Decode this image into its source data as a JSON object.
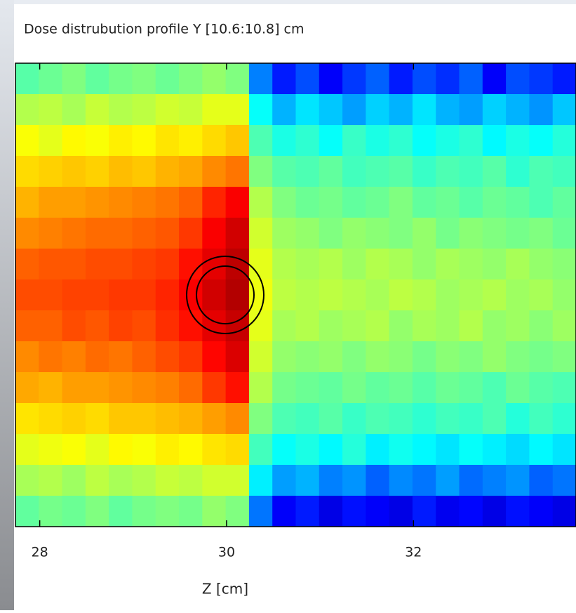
{
  "chart_data": {
    "type": "heatmap",
    "title": "Dose distrubution profile Y [10.6:10.8] cm",
    "xlabel": "Z [cm]",
    "xlim": [
      27.74,
      33.74
    ],
    "xticks": [
      28,
      30,
      32
    ],
    "colormap": "jet",
    "zlim": [
      0,
      1
    ],
    "z": [
      [
        0.46,
        0.48,
        0.5,
        0.47,
        0.49,
        0.5,
        0.48,
        0.5,
        0.52,
        0.5,
        0.25,
        0.15,
        0.2,
        0.12,
        0.18,
        0.22,
        0.15,
        0.2,
        0.17,
        0.22,
        0.12,
        0.2,
        0.18,
        0.15
      ],
      [
        0.55,
        0.56,
        0.54,
        0.57,
        0.55,
        0.56,
        0.58,
        0.57,
        0.6,
        0.6,
        0.38,
        0.3,
        0.35,
        0.32,
        0.28,
        0.33,
        0.3,
        0.35,
        0.3,
        0.28,
        0.33,
        0.3,
        0.27,
        0.32
      ],
      [
        0.62,
        0.6,
        0.63,
        0.62,
        0.64,
        0.63,
        0.65,
        0.64,
        0.66,
        0.68,
        0.45,
        0.4,
        0.42,
        0.38,
        0.43,
        0.4,
        0.42,
        0.38,
        0.4,
        0.42,
        0.37,
        0.4,
        0.38,
        0.41
      ],
      [
        0.66,
        0.67,
        0.68,
        0.67,
        0.69,
        0.68,
        0.7,
        0.71,
        0.74,
        0.76,
        0.5,
        0.46,
        0.45,
        0.47,
        0.44,
        0.45,
        0.46,
        0.43,
        0.45,
        0.44,
        0.46,
        0.42,
        0.45,
        0.44
      ],
      [
        0.7,
        0.72,
        0.72,
        0.73,
        0.74,
        0.75,
        0.76,
        0.78,
        0.84,
        0.88,
        0.55,
        0.5,
        0.48,
        0.49,
        0.47,
        0.48,
        0.5,
        0.47,
        0.48,
        0.46,
        0.48,
        0.47,
        0.45,
        0.47
      ],
      [
        0.74,
        0.75,
        0.76,
        0.77,
        0.77,
        0.78,
        0.79,
        0.82,
        0.88,
        0.92,
        0.58,
        0.53,
        0.52,
        0.5,
        0.52,
        0.51,
        0.5,
        0.52,
        0.49,
        0.51,
        0.5,
        0.49,
        0.5,
        0.48
      ],
      [
        0.78,
        0.79,
        0.79,
        0.8,
        0.8,
        0.81,
        0.82,
        0.86,
        0.9,
        0.94,
        0.6,
        0.55,
        0.54,
        0.55,
        0.53,
        0.55,
        0.54,
        0.52,
        0.54,
        0.53,
        0.52,
        0.54,
        0.52,
        0.51
      ],
      [
        0.8,
        0.8,
        0.81,
        0.81,
        0.82,
        0.82,
        0.84,
        0.88,
        0.92,
        0.95,
        0.61,
        0.56,
        0.55,
        0.56,
        0.55,
        0.54,
        0.56,
        0.55,
        0.53,
        0.54,
        0.55,
        0.53,
        0.54,
        0.52
      ],
      [
        0.78,
        0.78,
        0.8,
        0.79,
        0.81,
        0.8,
        0.83,
        0.86,
        0.9,
        0.93,
        0.6,
        0.54,
        0.55,
        0.53,
        0.54,
        0.55,
        0.52,
        0.54,
        0.53,
        0.55,
        0.52,
        0.53,
        0.51,
        0.53
      ],
      [
        0.74,
        0.76,
        0.75,
        0.77,
        0.76,
        0.78,
        0.8,
        0.82,
        0.87,
        0.91,
        0.58,
        0.52,
        0.51,
        0.52,
        0.5,
        0.52,
        0.51,
        0.49,
        0.51,
        0.5,
        0.52,
        0.5,
        0.49,
        0.5
      ],
      [
        0.71,
        0.7,
        0.72,
        0.72,
        0.73,
        0.74,
        0.75,
        0.77,
        0.82,
        0.86,
        0.55,
        0.49,
        0.48,
        0.47,
        0.49,
        0.47,
        0.48,
        0.46,
        0.48,
        0.47,
        0.45,
        0.48,
        0.46,
        0.45
      ],
      [
        0.65,
        0.66,
        0.67,
        0.66,
        0.68,
        0.68,
        0.69,
        0.7,
        0.72,
        0.74,
        0.5,
        0.45,
        0.44,
        0.46,
        0.43,
        0.45,
        0.44,
        0.42,
        0.44,
        0.43,
        0.45,
        0.41,
        0.44,
        0.42
      ],
      [
        0.6,
        0.61,
        0.62,
        0.6,
        0.63,
        0.62,
        0.64,
        0.63,
        0.65,
        0.66,
        0.44,
        0.38,
        0.4,
        0.37,
        0.41,
        0.36,
        0.39,
        0.37,
        0.35,
        0.38,
        0.36,
        0.34,
        0.37,
        0.35
      ],
      [
        0.54,
        0.55,
        0.53,
        0.56,
        0.54,
        0.55,
        0.57,
        0.56,
        0.58,
        0.58,
        0.36,
        0.28,
        0.3,
        0.25,
        0.27,
        0.22,
        0.26,
        0.24,
        0.28,
        0.23,
        0.25,
        0.27,
        0.22,
        0.24
      ],
      [
        0.47,
        0.49,
        0.48,
        0.5,
        0.47,
        0.49,
        0.5,
        0.49,
        0.52,
        0.5,
        0.24,
        0.12,
        0.15,
        0.1,
        0.14,
        0.12,
        0.1,
        0.15,
        0.11,
        0.13,
        0.1,
        0.14,
        0.12,
        0.1
      ]
    ]
  }
}
